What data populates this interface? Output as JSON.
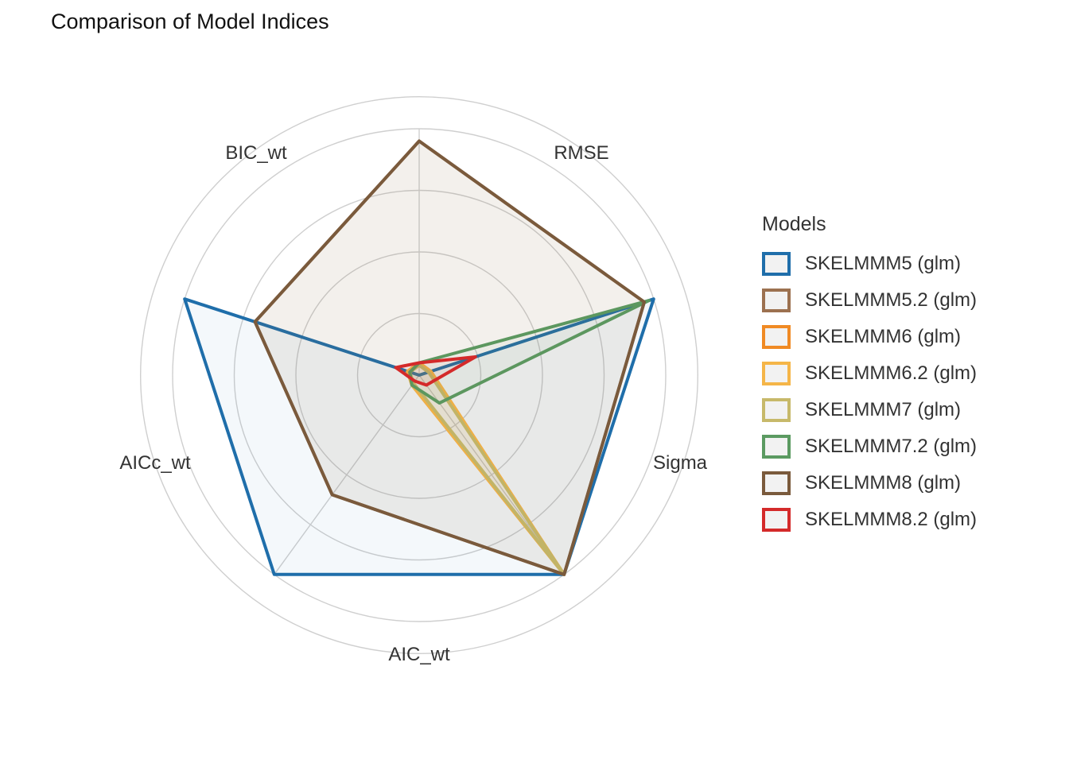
{
  "chart_data": {
    "type": "radar",
    "title": "Comparison of Model Indices",
    "axes": [
      "RMSE",
      "Sigma",
      "AIC_wt",
      "AICc_wt",
      "BIC_wt"
    ],
    "rlim": [
      0,
      1
    ],
    "grid": true,
    "legend_title": "Models",
    "legend_position": "right",
    "series": [
      {
        "name": "SKELMMM5 (glm)",
        "color": "#1f6eaa",
        "values": [
          1.0,
          1.0,
          1.0,
          1.0,
          0.0
        ]
      },
      {
        "name": "SKELMMM5.2 (glm)",
        "color": "#9c7150",
        "values": [
          0.96,
          1.0,
          0.6,
          0.7,
          0.95
        ]
      },
      {
        "name": "SKELMMM6 (glm)",
        "color": "#f08a24",
        "values": [
          0.05,
          1.0,
          0.05,
          0.05,
          0.05
        ]
      },
      {
        "name": "SKELMMM6.2 (glm)",
        "color": "#f5b548",
        "values": [
          0.05,
          1.0,
          0.05,
          0.05,
          0.05
        ]
      },
      {
        "name": "SKELMMM7 (glm)",
        "color": "#c7b96a",
        "values": [
          0.04,
          1.0,
          0.04,
          0.04,
          0.04
        ]
      },
      {
        "name": "SKELMMM7.2 (glm)",
        "color": "#5b9a61",
        "values": [
          0.98,
          0.14,
          0.05,
          0.04,
          0.05
        ]
      },
      {
        "name": "SKELMMM8 (glm)",
        "color": "#7a5a3c",
        "values": [
          0.96,
          1.0,
          0.6,
          0.7,
          0.95
        ]
      },
      {
        "name": "SKELMMM8.2 (glm)",
        "color": "#d42a2a",
        "values": [
          0.24,
          0.05,
          0.03,
          0.1,
          0.05
        ]
      }
    ]
  }
}
